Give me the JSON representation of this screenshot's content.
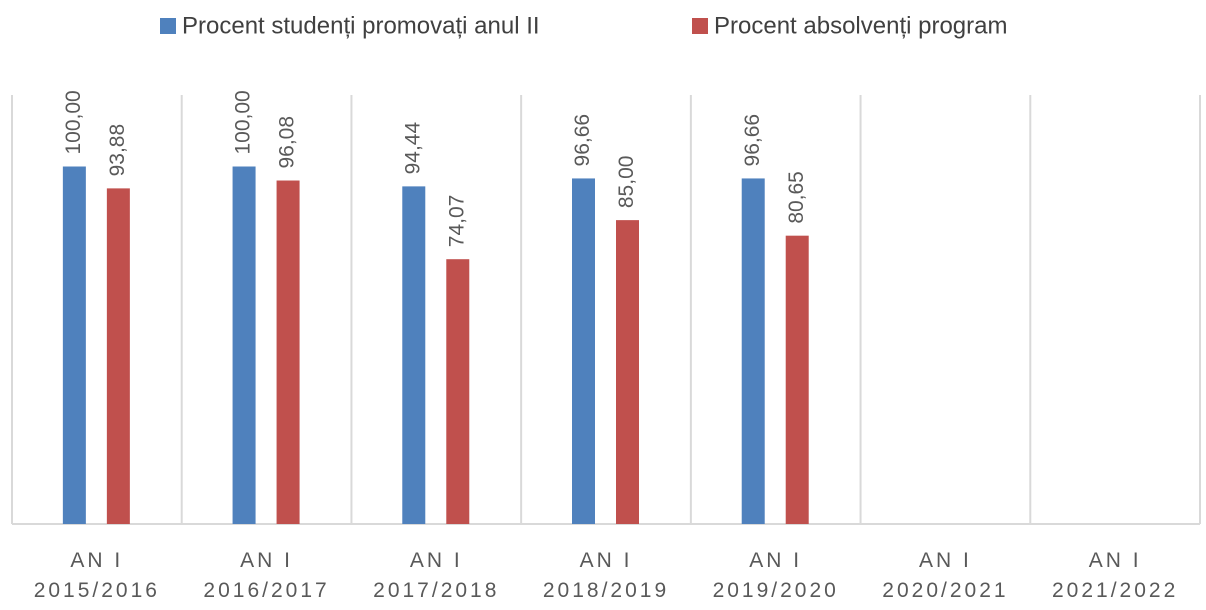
{
  "chart_data": {
    "type": "bar",
    "categories": [
      "AN I\n2015/2016",
      "AN I\n2016/2017",
      "AN I\n2017/2018",
      "AN I\n2018/2019",
      "AN I\n2019/2020",
      "AN I\n2020/2021",
      "AN I\n2021/2022"
    ],
    "series": [
      {
        "name": "Procent studenți promovați anul II",
        "color": "#4f81bd",
        "values": [
          100,
          100,
          94.44,
          96.66,
          96.66,
          null,
          null
        ],
        "value_labels": [
          "100,00",
          "100,00",
          "94,44",
          "96,66",
          "96,66",
          null,
          null
        ]
      },
      {
        "name": "Procent absolvenți program",
        "color": "#c0504d",
        "values": [
          93.88,
          96.08,
          74.07,
          85,
          80.65,
          null,
          null
        ],
        "value_labels": [
          "93,88",
          "96,08",
          "74,07",
          "85,00",
          "80,65",
          null,
          null
        ]
      }
    ],
    "ylim": [
      0,
      120
    ],
    "legend": "top"
  }
}
